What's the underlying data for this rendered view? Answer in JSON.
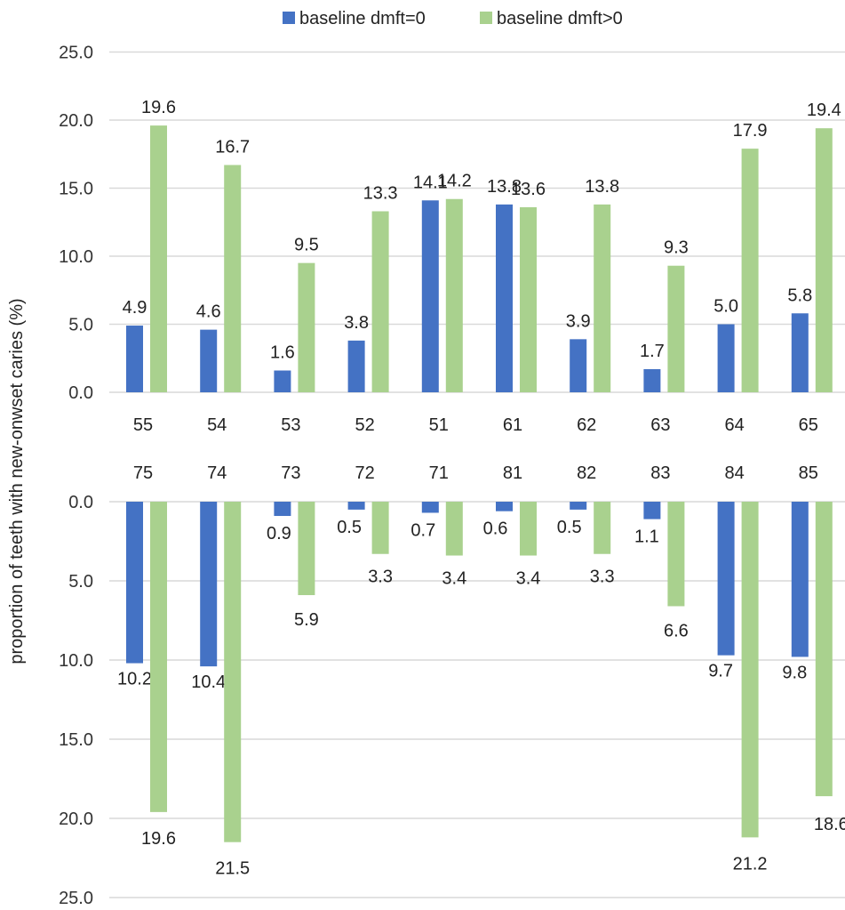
{
  "chart_data": [
    {
      "type": "bar",
      "panel": "upper",
      "categories": [
        "55",
        "54",
        "53",
        "52",
        "51",
        "61",
        "62",
        "63",
        "64",
        "65"
      ],
      "series": [
        {
          "name": "baseline dmft=0",
          "color": "#4472C4",
          "values": [
            4.9,
            4.6,
            1.6,
            3.8,
            14.1,
            13.8,
            3.9,
            1.7,
            5.0,
            5.8
          ]
        },
        {
          "name": "baseline dmft>0",
          "color": "#A9D18E",
          "values": [
            19.6,
            16.7,
            9.5,
            13.3,
            14.2,
            13.6,
            13.8,
            9.3,
            17.9,
            19.4
          ]
        }
      ],
      "yticks": [
        "0.0",
        "5.0",
        "10.0",
        "15.0",
        "20.0",
        "25.0"
      ],
      "ylim": [
        0,
        25
      ]
    },
    {
      "type": "bar",
      "panel": "lower",
      "orientation": "downward",
      "categories": [
        "75",
        "74",
        "73",
        "72",
        "71",
        "81",
        "82",
        "83",
        "84",
        "85"
      ],
      "series": [
        {
          "name": "baseline dmft=0",
          "color": "#4472C4",
          "values": [
            10.2,
            10.4,
            0.9,
            0.5,
            0.7,
            0.6,
            0.5,
            1.1,
            9.7,
            9.8
          ]
        },
        {
          "name": "baseline dmft>0",
          "color": "#A9D18E",
          "values": [
            19.6,
            21.5,
            5.9,
            3.3,
            3.4,
            3.4,
            3.3,
            6.6,
            21.2,
            18.6
          ]
        }
      ],
      "yticks": [
        "0.0",
        "5.0",
        "10.0",
        "15.0",
        "20.0",
        "25.0"
      ],
      "ylim": [
        0,
        25
      ]
    }
  ],
  "ylabel": "proportion of teeth with new-onwset caries (%)",
  "legend": {
    "position": "top",
    "items": [
      {
        "label": "baseline dmft=0",
        "color": "#4472C4"
      },
      {
        "label": "baseline dmft>0",
        "color": "#A9D18E"
      }
    ]
  }
}
